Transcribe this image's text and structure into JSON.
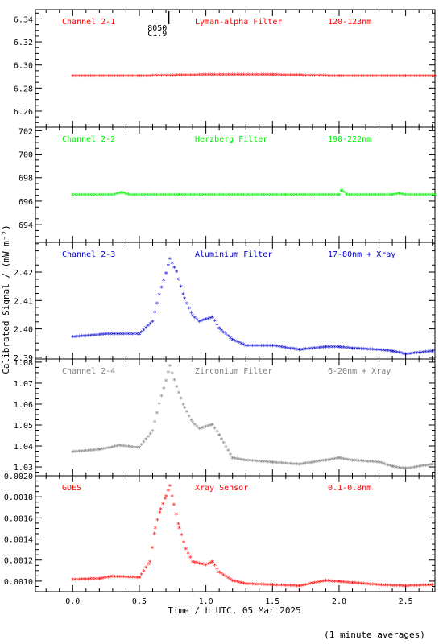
{
  "figure": {
    "y_axis_label": "Calibrated Signal / (mW m⁻²)",
    "x_axis_label": "Time / h UTC, 05 Mar 2025",
    "footnote": "(1 minute averages)",
    "top_marker": {
      "x": 0.72,
      "label_1": "8050",
      "label_2": "C1.9"
    }
  },
  "chart_data": [
    {
      "type": "scatter",
      "channel": "Channel 2-1",
      "filter": "Lyman-alpha Filter",
      "band": "120-123nm",
      "color": "#ff0000",
      "xlim": [
        -0.28,
        2.72
      ],
      "ylim": [
        6.246,
        6.348
      ],
      "yticks": [
        "6.26",
        "6.28",
        "6.30",
        "6.32",
        "6.34"
      ],
      "series": [
        {
          "x": [
            0.0,
            0.5,
            1.0,
            1.5,
            2.0,
            2.5,
            2.72
          ],
          "y": [
            6.29,
            6.29,
            6.291,
            6.291,
            6.29,
            6.29,
            6.29
          ]
        }
      ]
    },
    {
      "type": "scatter",
      "channel": "Channel 2-2",
      "filter": "Herzberg Filter",
      "band": "190-222nm",
      "color": "#00ee00",
      "xlim": [
        -0.28,
        2.72
      ],
      "ylim": [
        692.5,
        702.3
      ],
      "yticks": [
        "694",
        "696",
        "698",
        "700",
        "702"
      ],
      "series": [
        {
          "x": [
            0.0,
            0.3,
            0.37,
            0.43,
            0.8,
            1.2,
            1.6,
            2.0,
            2.02,
            2.06,
            2.4,
            2.45,
            2.5,
            2.72
          ],
          "y": [
            696.5,
            696.5,
            696.7,
            696.5,
            696.5,
            696.5,
            696.5,
            696.5,
            696.9,
            696.5,
            696.5,
            696.6,
            696.5,
            696.5
          ]
        }
      ]
    },
    {
      "type": "scatter",
      "channel": "Channel 2-3",
      "filter": "Aluminium Filter",
      "band": "17-80nm + Xray",
      "color": "#0000cc",
      "xlim": [
        -0.28,
        2.72
      ],
      "ylim": [
        2.3894,
        2.4305
      ],
      "yticks": [
        "2.39",
        "2.40",
        "2.41",
        "2.42"
      ],
      "series": [
        {
          "x": [
            0.0,
            0.25,
            0.35,
            0.5,
            0.6,
            0.65,
            0.7,
            0.73,
            0.78,
            0.84,
            0.9,
            0.95,
            1.05,
            1.1,
            1.2,
            1.3,
            1.5,
            1.7,
            1.9,
            2.0,
            2.1,
            2.3,
            2.4,
            2.5,
            2.7
          ],
          "y": [
            2.397,
            2.398,
            2.398,
            2.398,
            2.4025,
            2.412,
            2.4195,
            2.4245,
            2.42,
            2.4105,
            2.4045,
            2.4025,
            2.404,
            2.4,
            2.396,
            2.394,
            2.394,
            2.3925,
            2.3935,
            2.3935,
            2.393,
            2.3925,
            2.392,
            2.391,
            2.392
          ]
        }
      ]
    },
    {
      "type": "scatter",
      "channel": "Channel 2-4",
      "filter": "Zirconium Filter",
      "band": "6-20nm + Xray",
      "color": "#808080",
      "xlim": [
        -0.28,
        2.72
      ],
      "ylim": [
        1.0258,
        1.0815
      ],
      "yticks": [
        "1.03",
        "1.04",
        "1.05",
        "1.06",
        "1.07",
        "1.08"
      ],
      "series": [
        {
          "x": [
            0.0,
            0.2,
            0.35,
            0.5,
            0.6,
            0.65,
            0.7,
            0.73,
            0.78,
            0.84,
            0.9,
            0.95,
            1.05,
            1.1,
            1.2,
            1.3,
            1.5,
            1.7,
            1.9,
            2.0,
            2.1,
            2.3,
            2.4,
            2.5,
            2.7
          ],
          "y": [
            1.037,
            1.038,
            1.04,
            1.039,
            1.047,
            1.06,
            1.071,
            1.078,
            1.068,
            1.058,
            1.051,
            1.048,
            1.05,
            1.045,
            1.034,
            1.033,
            1.032,
            1.031,
            1.033,
            1.034,
            1.033,
            1.032,
            1.03,
            1.029,
            1.031
          ]
        }
      ]
    },
    {
      "type": "scatter",
      "channel": "GOES",
      "filter": "Xray Sensor",
      "band": "0.1-0.8nm",
      "color": "#ff0000",
      "xlim": [
        -0.28,
        2.72
      ],
      "ylim": [
        0.0009,
        0.002
      ],
      "yticks": [
        "0.0010",
        "0.0012",
        "0.0014",
        "0.0016",
        "0.0018",
        "0.0020"
      ],
      "series": [
        {
          "x": [
            0.0,
            0.2,
            0.3,
            0.5,
            0.58,
            0.62,
            0.66,
            0.7,
            0.73,
            0.76,
            0.8,
            0.85,
            0.9,
            1.0,
            1.05,
            1.1,
            1.2,
            1.3,
            1.5,
            1.7,
            1.9,
            2.0,
            2.1,
            2.3,
            2.5,
            2.7
          ],
          "y": [
            0.00101,
            0.00102,
            0.00104,
            0.00103,
            0.00118,
            0.0015,
            0.00168,
            0.0018,
            0.0019,
            0.00172,
            0.0015,
            0.0013,
            0.00118,
            0.00115,
            0.00118,
            0.00108,
            0.001,
            0.00097,
            0.00096,
            0.00095,
            0.001,
            0.00099,
            0.00098,
            0.00096,
            0.00095,
            0.00096
          ]
        }
      ]
    }
  ],
  "x_ticks": [
    "0.0",
    "0.5",
    "1.0",
    "1.5",
    "2.0",
    "2.5"
  ]
}
